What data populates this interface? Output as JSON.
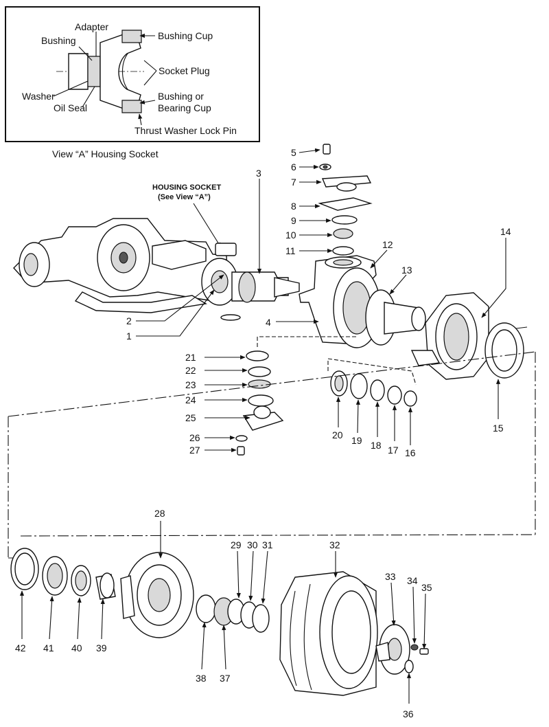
{
  "view_a": {
    "caption": "View “A” Housing Socket",
    "labels": {
      "adapter": "Adapter",
      "bushing": "Bushing",
      "bushing_cup": "Bushing  Cup",
      "socket_plug": "Socket Plug",
      "washer": "Washer",
      "oil_seal": "Oil Seal",
      "bushing_or": "Bushing or",
      "bearing_cup": "Bearing Cup",
      "thrust_pin": "Thrust Washer Lock Pin"
    }
  },
  "housing_socket": {
    "line1": "HOUSING SOCKET",
    "line2": "(See View “A”)"
  },
  "callouts": {
    "n1": "1",
    "n2": "2",
    "n3": "3",
    "n4": "4",
    "n5": "5",
    "n6": "6",
    "n7": "7",
    "n8": "8",
    "n9": "9",
    "n10": "10",
    "n11": "11",
    "n12": "12",
    "n13": "13",
    "n14": "14",
    "n15": "15",
    "n16": "16",
    "n17": "17",
    "n18": "18",
    "n19": "19",
    "n20": "20",
    "n21": "21",
    "n22": "22",
    "n23": "23",
    "n24": "24",
    "n25": "25",
    "n26": "26",
    "n27": "27",
    "n28": "28",
    "n29": "29",
    "n30": "30",
    "n31": "31",
    "n32": "32",
    "n33": "33",
    "n34": "34",
    "n35": "35",
    "n36": "36",
    "n37": "37",
    "n38": "38",
    "n39": "39",
    "n40": "40",
    "n41": "41",
    "n42": "42"
  }
}
